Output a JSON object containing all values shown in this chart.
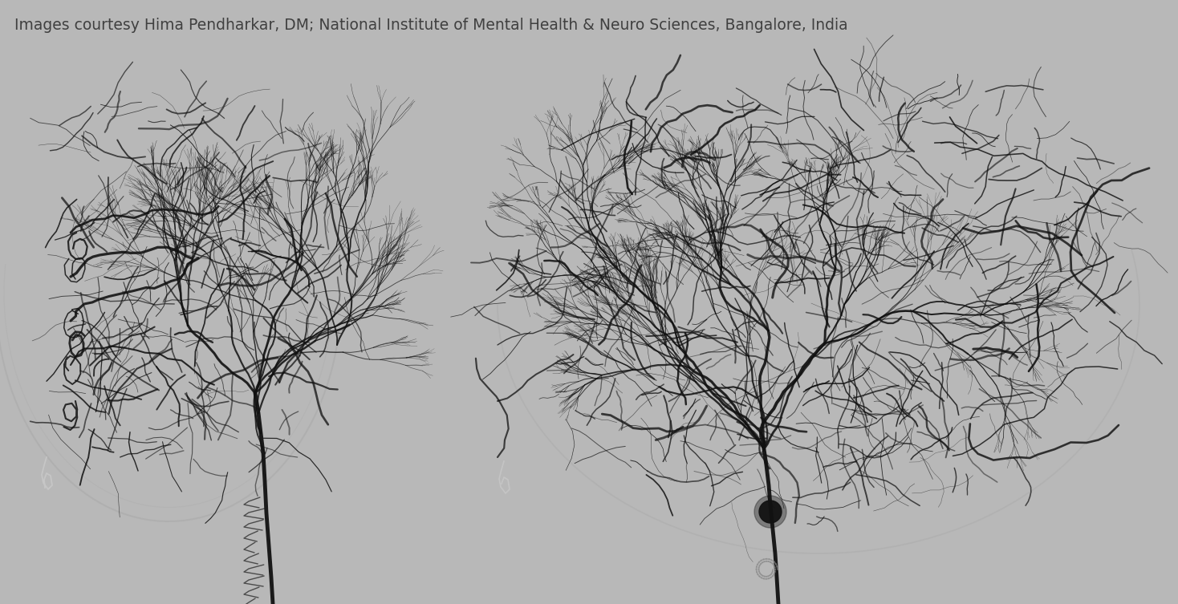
{
  "background_color": "#b8b8b8",
  "caption": "Images courtesy Hima Pendharkar, DM; National Institute of Mental Health & Neuro Sciences, Bangalore, India",
  "caption_color": "#404040",
  "caption_fontsize": 13.5,
  "fig_width": 14.68,
  "fig_height": 7.53,
  "vessel_color": "#111111",
  "skull_color": "#c8c8c8",
  "skull_edge_color": "#a8a8a8"
}
